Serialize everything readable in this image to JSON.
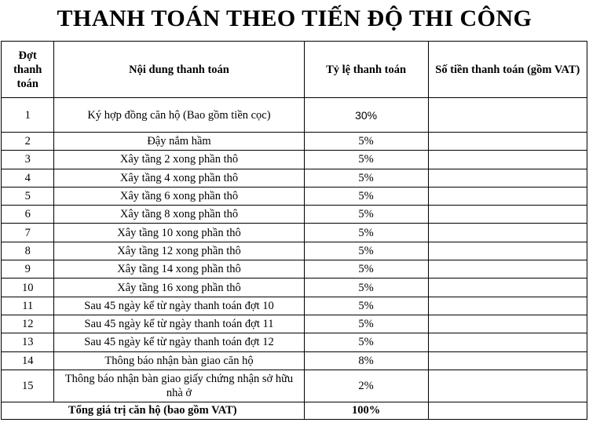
{
  "title": "THANH TOÁN THEO TIẾN ĐỘ THI CÔNG",
  "table": {
    "headers": {
      "stage": "Đợt thanh toán",
      "content": "Nội dung thanh toán",
      "rate": "Tỷ lệ thanh toán",
      "amount": "Số tiền thanh toán (gồm VAT)"
    },
    "rows": [
      {
        "stage": "1",
        "content": "Ký hợp đồng căn hộ (Bao gồm tiền cọc)",
        "rate": "30%",
        "amount": ""
      },
      {
        "stage": "2",
        "content": "Đậy nắm hầm",
        "rate": "5%",
        "amount": ""
      },
      {
        "stage": "3",
        "content": "Xây tầng 2 xong phần thô",
        "rate": "5%",
        "amount": ""
      },
      {
        "stage": "4",
        "content": "Xây tầng 4 xong phần thô",
        "rate": "5%",
        "amount": ""
      },
      {
        "stage": "5",
        "content": "Xây tầng 6 xong phần thô",
        "rate": "5%",
        "amount": ""
      },
      {
        "stage": "6",
        "content": "Xây tầng 8 xong phần thô",
        "rate": "5%",
        "amount": ""
      },
      {
        "stage": "7",
        "content": "Xây tầng 10 xong phần thô",
        "rate": "5%",
        "amount": ""
      },
      {
        "stage": "8",
        "content": "Xây tầng 12 xong phần thô",
        "rate": "5%",
        "amount": ""
      },
      {
        "stage": "9",
        "content": "Xây tầng 14 xong phần thô",
        "rate": "5%",
        "amount": ""
      },
      {
        "stage": "10",
        "content": "Xây tầng 16 xong phần thô",
        "rate": "5%",
        "amount": ""
      },
      {
        "stage": "11",
        "content": "Sau 45 ngày kể từ ngày thanh toán đợt 10",
        "rate": "5%",
        "amount": ""
      },
      {
        "stage": "12",
        "content": "Sau 45 ngày kể từ ngày thanh toán đợt 11",
        "rate": "5%",
        "amount": ""
      },
      {
        "stage": "13",
        "content": "Sau 45 ngày kể từ ngày thanh toán đợt 12",
        "rate": "5%",
        "amount": ""
      },
      {
        "stage": "14",
        "content": "Thông báo nhận bàn giao căn hộ",
        "rate": "8%",
        "amount": ""
      },
      {
        "stage": "15",
        "content": "Thông báo nhận bàn giao giấy chứng nhận sở hữu nhà ở",
        "rate": "2%",
        "amount": ""
      }
    ],
    "total": {
      "label": "Tổng giá trị căn hộ (bao gồm VAT)",
      "rate": "100%"
    }
  }
}
